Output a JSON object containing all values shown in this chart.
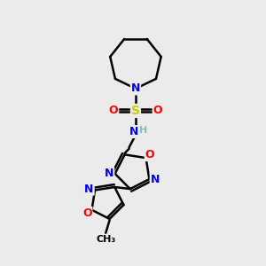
{
  "background_color": "#ebebeb",
  "atom_colors": {
    "C": "#000000",
    "N": "#0000ff",
    "O": "#ff0000",
    "S": "#cccc00",
    "H": "#80c0c0"
  },
  "bond_color": "#000000",
  "lw": 1.8,
  "figsize": [
    3.0,
    3.0
  ],
  "dpi": 100,
  "xlim": [
    0,
    10
  ],
  "ylim": [
    0,
    10
  ]
}
